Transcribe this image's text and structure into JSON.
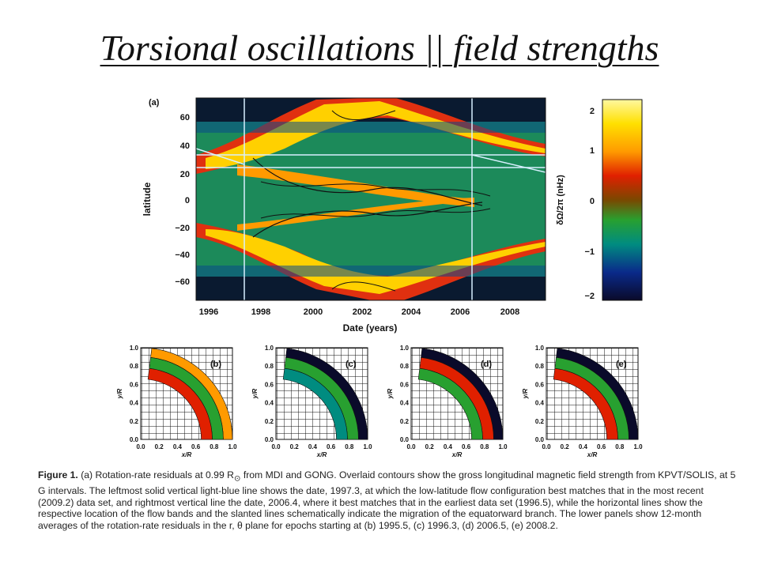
{
  "slide": {
    "title": "Torsional oscillations || field strengths"
  },
  "main_panel": {
    "label": "(a)",
    "xlabel": "Date (years)",
    "ylabel": "latitude",
    "x_ticks": [
      "1996",
      "1998",
      "2000",
      "2002",
      "2004",
      "2006",
      "2008"
    ],
    "y_ticks": [
      "60",
      "40",
      "20",
      "0",
      "−20",
      "−40",
      "−60"
    ],
    "vertical_lines_dates": [
      "1997.3",
      "2006.4"
    ]
  },
  "colorbar": {
    "label": "δΩ/2π  (nHz)",
    "ticks": [
      "2",
      "1",
      "0",
      "−1",
      "−2"
    ],
    "colors": [
      "#fff8a0",
      "#ffe000",
      "#ff9a00",
      "#e02000",
      "#7a4800",
      "#28a030",
      "#008c80",
      "#0a2a8a",
      "#0a0a2a"
    ]
  },
  "small_panels": [
    {
      "label": "(b)"
    },
    {
      "label": "(c)"
    },
    {
      "label": "(d)"
    },
    {
      "label": "(e)"
    }
  ],
  "small_axes": {
    "xlabel": "x/R",
    "ylabel": "y/R",
    "ticks": [
      "0.0",
      "0.2",
      "0.4",
      "0.6",
      "0.8",
      "1.0"
    ]
  },
  "caption": {
    "label": "Figure 1.",
    "part1": "(a) Rotation-rate residuals at 0.99 R",
    "sub": "⊙",
    "part2": " from MDI and GONG. Overlaid contours show the gross longitudinal magnetic field strength from KPVT/SOLIS, at 5 G intervals. The leftmost solid vertical light-blue line shows the date, 1997.3, at which the low-latitude flow configuration best matches that in the most recent (2009.2) data set, and rightmost vertical line the date, 2006.4, where it best matches that in the earliest data set (1996.5), while the horizontal lines show the respective location of the flow bands and the slanted lines schematically indicate the migration of the equatorward branch. The lower panels show 12-month averages of the rotation-rate residuals in the r, θ plane for epochs starting at (b) 1995.5, (c) 1996.3, (d) 2006.5, (e) 2008.2."
  }
}
